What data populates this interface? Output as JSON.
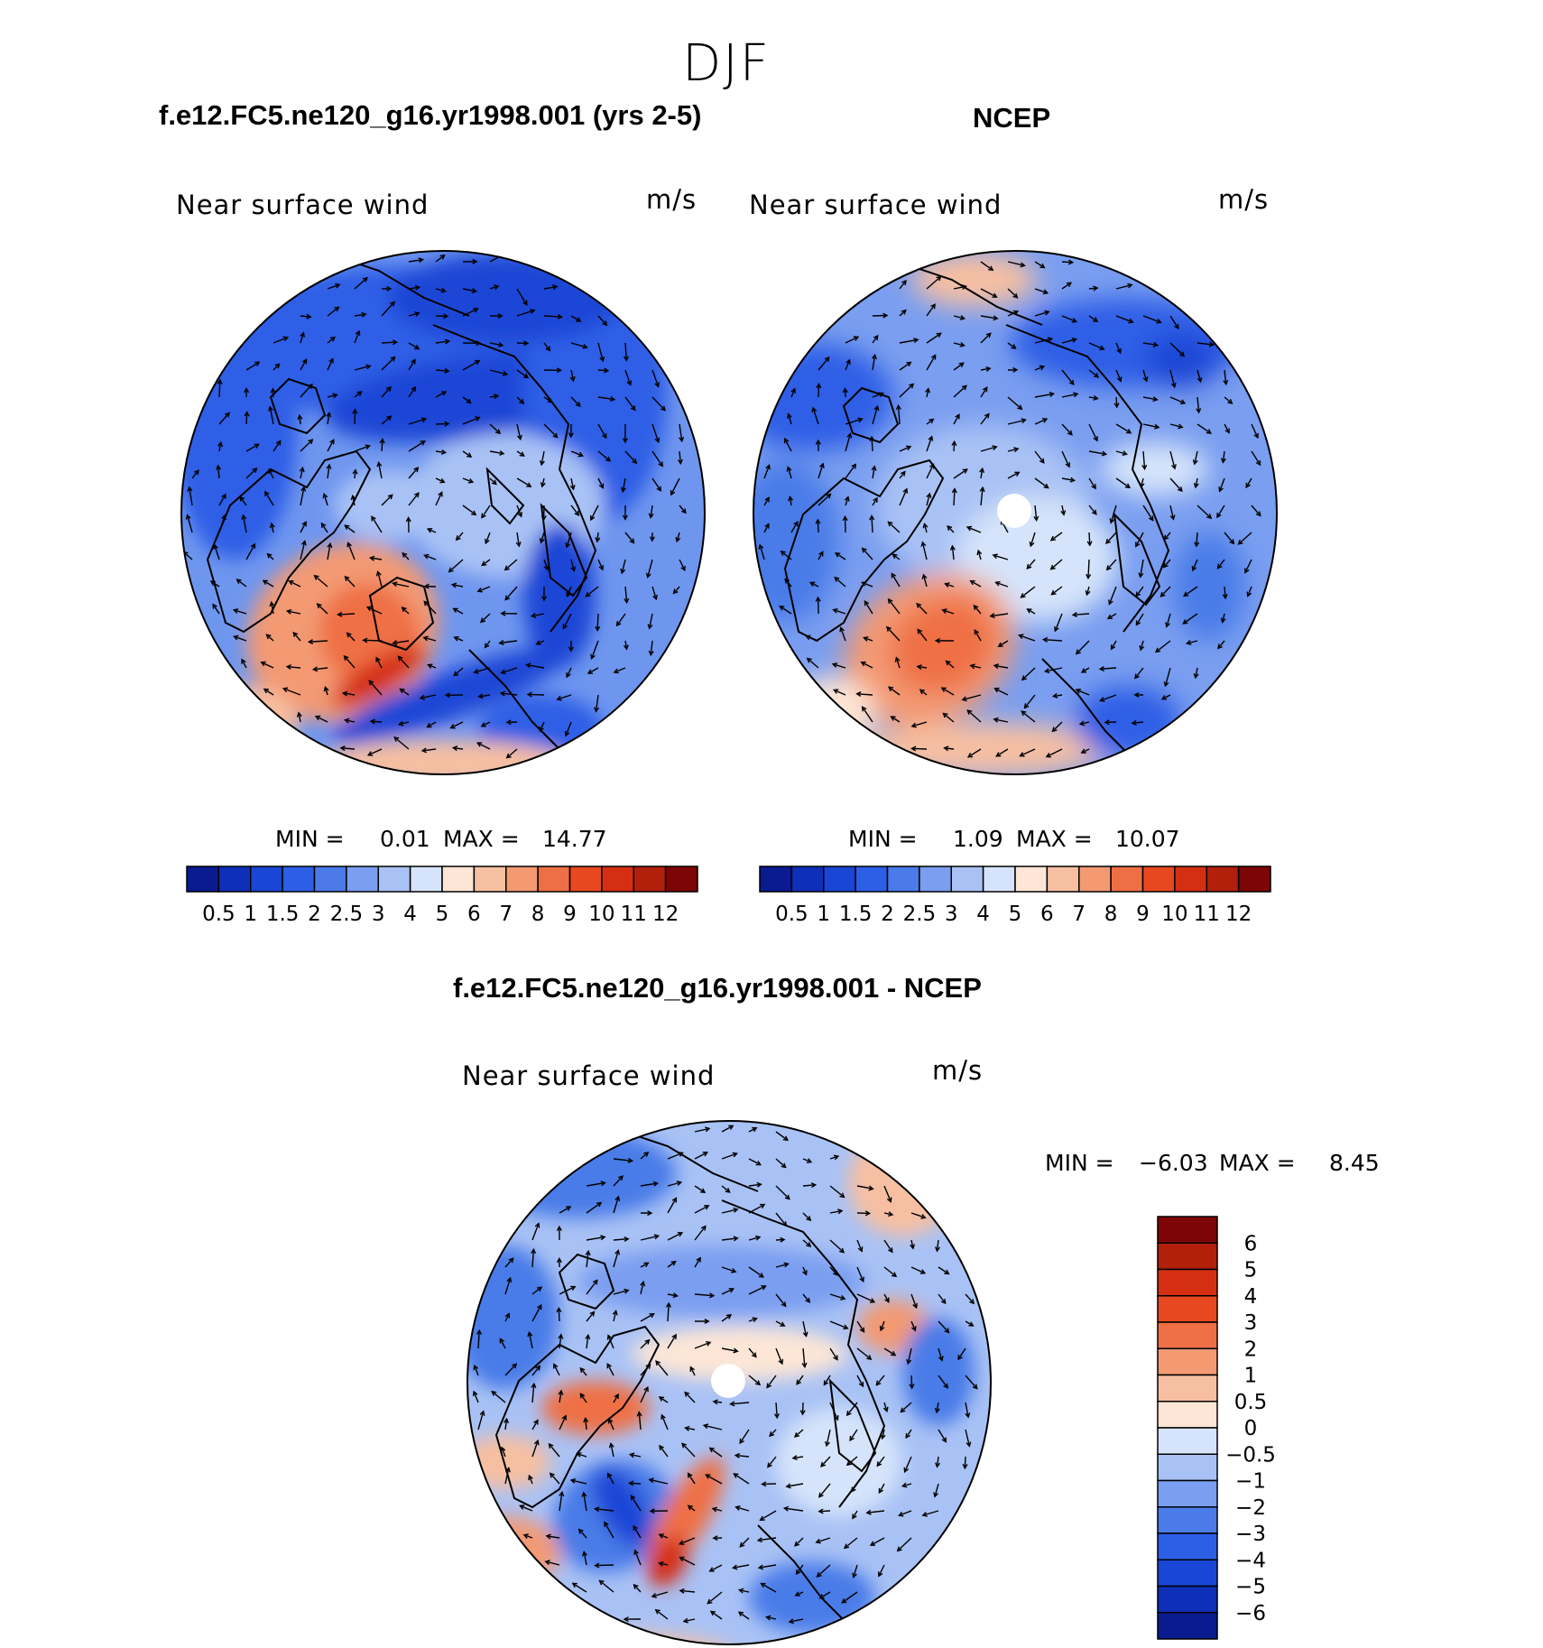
{
  "season": "DJF",
  "chart_data": [
    {
      "type": "heatmap",
      "title": "f.e12.FC5.ne120_g16.yr1998.001 (yrs 2-5)",
      "variable": "Near surface wind",
      "units": "m/s",
      "min_label": "MIN =",
      "min_value": "0.01",
      "max_label": "MAX =",
      "max_value": "14.77",
      "colorbar_levels": [
        "0.5",
        "1",
        "1.5",
        "2",
        "2.5",
        "3",
        "4",
        "5",
        "6",
        "7",
        "8",
        "9",
        "10",
        "11",
        "12"
      ],
      "colorbar_colors": [
        "#0a1b8f",
        "#0e2fb8",
        "#1a46d6",
        "#2d5fe6",
        "#4a7be8",
        "#7a9ef0",
        "#a9c2f5",
        "#d5e4fa",
        "#fde6d6",
        "#f7bfa1",
        "#f39a73",
        "#ef6f44",
        "#e8481f",
        "#d42f12",
        "#b21f0b",
        "#7e0505"
      ]
    },
    {
      "type": "heatmap",
      "title": "NCEP",
      "variable": "Near surface wind",
      "units": "m/s",
      "min_label": "MIN =",
      "min_value": "1.09",
      "max_label": "MAX =",
      "max_value": "10.07",
      "colorbar_levels": [
        "0.5",
        "1",
        "1.5",
        "2",
        "2.5",
        "3",
        "4",
        "5",
        "6",
        "7",
        "8",
        "9",
        "10",
        "11",
        "12"
      ],
      "colorbar_colors": [
        "#0a1b8f",
        "#0e2fb8",
        "#1a46d6",
        "#2d5fe6",
        "#4a7be8",
        "#7a9ef0",
        "#a9c2f5",
        "#d5e4fa",
        "#fde6d6",
        "#f7bfa1",
        "#f39a73",
        "#ef6f44",
        "#e8481f",
        "#d42f12",
        "#b21f0b",
        "#7e0505"
      ]
    },
    {
      "type": "heatmap",
      "title": "f.e12.FC5.ne120_g16.yr1998.001 - NCEP",
      "variable": "Near surface wind",
      "units": "m/s",
      "min_label": "MIN =",
      "min_value": "−6.03",
      "max_label": "MAX =",
      "max_value": "8.45",
      "colorbar_levels": [
        "6",
        "5",
        "4",
        "3",
        "2",
        "1",
        "0.5",
        "0",
        "−0.5",
        "−1",
        "−2",
        "−3",
        "−4",
        "−5",
        "−6"
      ],
      "colorbar_colors": [
        "#7e0505",
        "#b21f0b",
        "#d42f12",
        "#e8481f",
        "#ef6f44",
        "#f39a73",
        "#f7bfa1",
        "#fde6d6",
        "#d5e4fa",
        "#a9c2f5",
        "#7a9ef0",
        "#4a7be8",
        "#2d5fe6",
        "#1a46d6",
        "#0e2fb8",
        "#0a1b8f"
      ]
    }
  ]
}
